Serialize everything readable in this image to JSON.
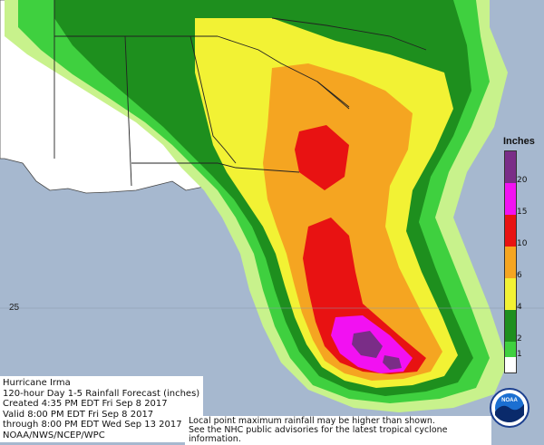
{
  "map": {
    "latitude_label": "25",
    "colors": {
      "ocean": "#a6b8cf",
      "land": "#ffffff",
      "lt1": "#c8f28c",
      "c1": "#3fd03f",
      "c2": "#1e8f1e",
      "c4": "#f2f234",
      "c6": "#f5a521",
      "c10": "#e81212",
      "c15": "#f211f2",
      "c20": "#7a2d87"
    }
  },
  "legend": {
    "title": "Inches",
    "ticks": [
      "20",
      "15",
      "10",
      "6",
      "4",
      "2",
      "1"
    ]
  },
  "info": {
    "lines": [
      "Hurricane Irma",
      "120-hour Day 1-5 Rainfall Forecast (inches)",
      "Created 4:35 PM EDT Fri Sep 8 2017",
      "Valid 8:00 PM EDT Fri Sep 8 2017",
      "through 8:00 PM EDT Wed Sep 13 2017",
      "NOAA/NWS/NCEP/WPC"
    ]
  },
  "footnote": {
    "line1": "Local point maximum rainfall may be higher than shown.",
    "line2": "See the NHC public advisories for the latest tropical cyclone information."
  },
  "logo": {
    "text": "NOAA",
    "icon": "noaa-logo-icon"
  }
}
